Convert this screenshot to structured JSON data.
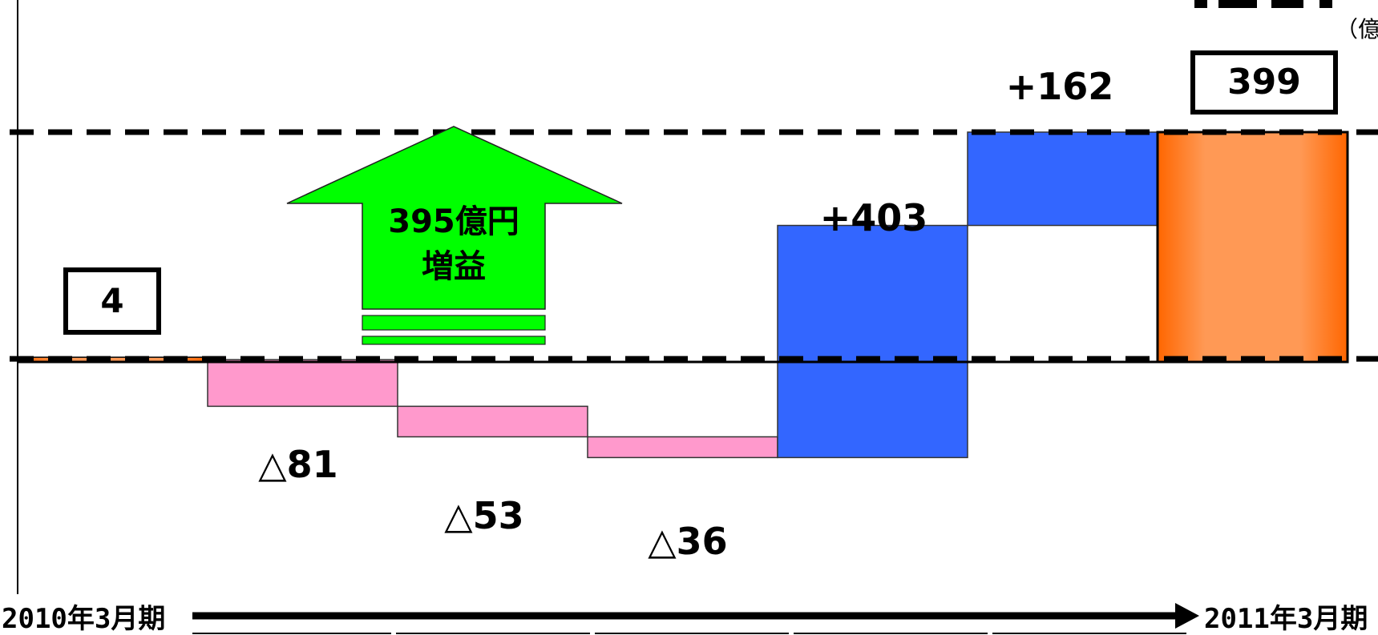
{
  "chart_data": {
    "type": "waterfall",
    "unit_label": "（億",
    "start": {
      "label": "4",
      "value": 4
    },
    "steps": [
      {
        "label": "△81",
        "value": -81
      },
      {
        "label": "△53",
        "value": -53
      },
      {
        "label": "△36",
        "value": -36
      },
      {
        "label": "+403",
        "value": 403
      },
      {
        "label": "+162",
        "value": 162
      }
    ],
    "end": {
      "label": "399",
      "value": 399
    },
    "x_start_label": "2010年3月期",
    "x_end_label": "2011年3月期",
    "callout": {
      "line1": "395億円",
      "line2": "増益"
    },
    "colors": {
      "decrease": "#ff99cc",
      "increase": "#3366ff",
      "total_dark": "#ff6600",
      "total_light": "#ff9955",
      "arrow": "#00ff00"
    }
  }
}
